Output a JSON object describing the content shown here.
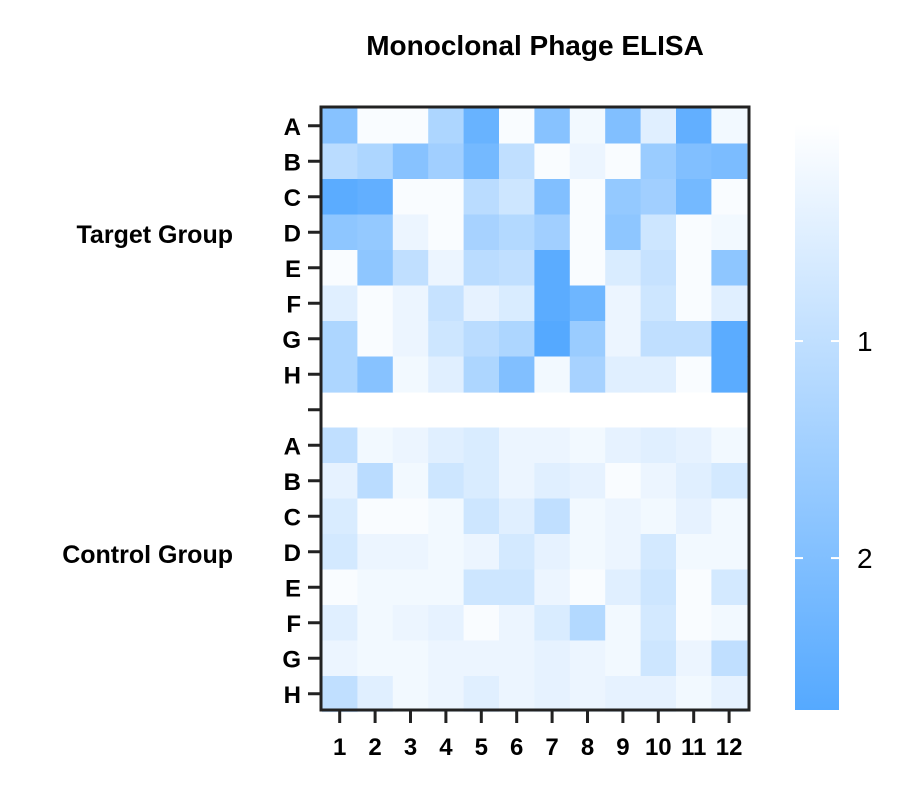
{
  "chart_data": {
    "type": "heatmap",
    "title": "Monoclonal Phage ELISA",
    "columns": [
      "1",
      "2",
      "3",
      "4",
      "5",
      "6",
      "7",
      "8",
      "9",
      "10",
      "11",
      "12"
    ],
    "groups": [
      {
        "name": "Target Group",
        "rows": [
          "A",
          "B",
          "C",
          "D",
          "E",
          "F",
          "G",
          "H"
        ],
        "values": [
          [
            1.9,
            0.1,
            0.1,
            1.3,
            2.4,
            0.1,
            1.9,
            0.2,
            2.0,
            0.5,
            2.5,
            0.2
          ],
          [
            1.1,
            1.3,
            1.9,
            1.5,
            2.2,
            1.0,
            0.1,
            0.3,
            0.1,
            1.6,
            2.0,
            2.1
          ],
          [
            2.6,
            2.5,
            0.1,
            0.1,
            1.1,
            0.8,
            2.0,
            0.1,
            1.7,
            1.5,
            2.2,
            0.1
          ],
          [
            1.8,
            1.7,
            0.3,
            0.1,
            1.4,
            1.2,
            1.5,
            0.1,
            1.8,
            0.8,
            0.1,
            0.2
          ],
          [
            0.1,
            1.8,
            1.0,
            0.3,
            1.1,
            1.0,
            2.6,
            0.1,
            0.6,
            0.9,
            0.1,
            1.8
          ],
          [
            0.5,
            0.1,
            0.3,
            0.9,
            0.4,
            0.6,
            2.6,
            2.3,
            0.3,
            0.8,
            0.1,
            0.5
          ],
          [
            1.3,
            0.1,
            0.3,
            0.8,
            1.1,
            1.3,
            2.7,
            1.6,
            0.3,
            1.0,
            1.0,
            2.6
          ],
          [
            1.3,
            1.9,
            0.2,
            0.5,
            1.3,
            2.0,
            0.2,
            1.4,
            0.5,
            0.5,
            0.1,
            2.6
          ]
        ]
      },
      {
        "name": "Control Group",
        "rows": [
          "A",
          "B",
          "C",
          "D",
          "E",
          "F",
          "G",
          "H"
        ],
        "values": [
          [
            1.0,
            0.2,
            0.3,
            0.5,
            0.6,
            0.3,
            0.3,
            0.2,
            0.4,
            0.5,
            0.4,
            0.2
          ],
          [
            0.4,
            1.1,
            0.2,
            0.8,
            0.6,
            0.3,
            0.5,
            0.4,
            0.1,
            0.3,
            0.5,
            0.7
          ],
          [
            0.6,
            0.1,
            0.1,
            0.2,
            0.8,
            0.5,
            1.0,
            0.2,
            0.3,
            0.2,
            0.4,
            0.2
          ],
          [
            0.7,
            0.3,
            0.3,
            0.2,
            0.3,
            0.7,
            0.4,
            0.2,
            0.3,
            0.7,
            0.2,
            0.2
          ],
          [
            0.1,
            0.2,
            0.2,
            0.2,
            0.8,
            0.8,
            0.3,
            0.1,
            0.5,
            0.8,
            0.1,
            0.7
          ],
          [
            0.5,
            0.2,
            0.3,
            0.4,
            0.1,
            0.3,
            0.6,
            1.2,
            0.2,
            0.7,
            0.1,
            0.2
          ],
          [
            0.3,
            0.2,
            0.2,
            0.3,
            0.3,
            0.3,
            0.4,
            0.3,
            0.2,
            0.8,
            0.3,
            1.0
          ],
          [
            1.0,
            0.5,
            0.2,
            0.3,
            0.5,
            0.3,
            0.4,
            0.3,
            0.4,
            0.4,
            0.2,
            0.4
          ]
        ]
      }
    ],
    "colorbar": {
      "ticks": [
        1,
        2
      ],
      "range": [
        0,
        2.7
      ],
      "low_color": "#ffffff",
      "high_color": "#55a9ff"
    },
    "grid": false
  }
}
